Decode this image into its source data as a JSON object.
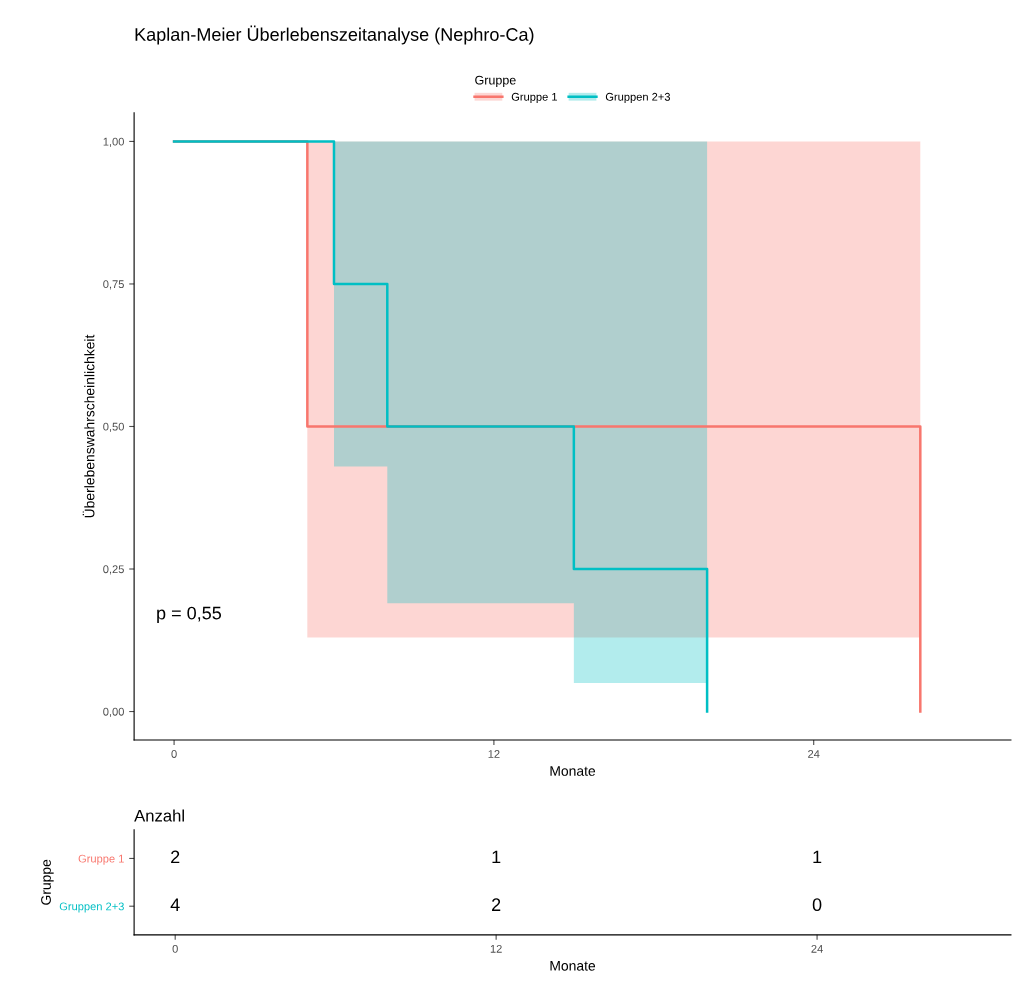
{
  "chart_data": [
    {
      "type": "step",
      "title": "Kaplan-Meier Überlebenszeitanalyse (Nephro-Ca)",
      "xlabel": "Monate",
      "ylabel": "Überlebenswahrscheinlichkeit",
      "legend_title": "Gruppe",
      "legend": "top",
      "grid": false,
      "xlim": [
        -1.5,
        31.4
      ],
      "xticks": [
        0,
        12,
        24
      ],
      "ylim": [
        -0.05,
        1.05
      ],
      "yticks": [
        {
          "value": 0,
          "label": "0,00"
        },
        {
          "value": 0.25,
          "label": "0,25"
        },
        {
          "value": 0.5,
          "label": "0,50"
        },
        {
          "value": 0.75,
          "label": "0,75"
        },
        {
          "value": 1,
          "label": "1,00"
        }
      ],
      "annotations": [
        "p = 0,55"
      ],
      "series": [
        {
          "name": "Gruppe 1",
          "color": "#f8766d",
          "x": [
            0,
            5,
            28
          ],
          "values": [
            1,
            0.5,
            0
          ],
          "lower": [
            1,
            0.13,
            0.13
          ],
          "upper": [
            1,
            1,
            1
          ]
        },
        {
          "name": "Gruppen 2+3",
          "color": "#00bfc4",
          "x": [
            0,
            6,
            8,
            15,
            20
          ],
          "values": [
            1,
            0.75,
            0.5,
            0.25,
            0
          ],
          "lower": [
            1,
            0.43,
            0.19,
            0.05,
            0.05
          ],
          "upper": [
            1,
            1,
            1,
            1,
            1
          ]
        }
      ]
    },
    {
      "type": "heatmap",
      "title": "Anzahl",
      "xlabel": "Monate",
      "ylabel": "Gruppe",
      "data_labels": true,
      "categories": [
        "0",
        "12",
        "24"
      ],
      "y_categories": [
        "Gruppe 1",
        "Gruppen 2+3"
      ],
      "cells": [
        [
          2,
          1,
          1
        ],
        [
          4,
          2,
          0
        ]
      ]
    }
  ]
}
